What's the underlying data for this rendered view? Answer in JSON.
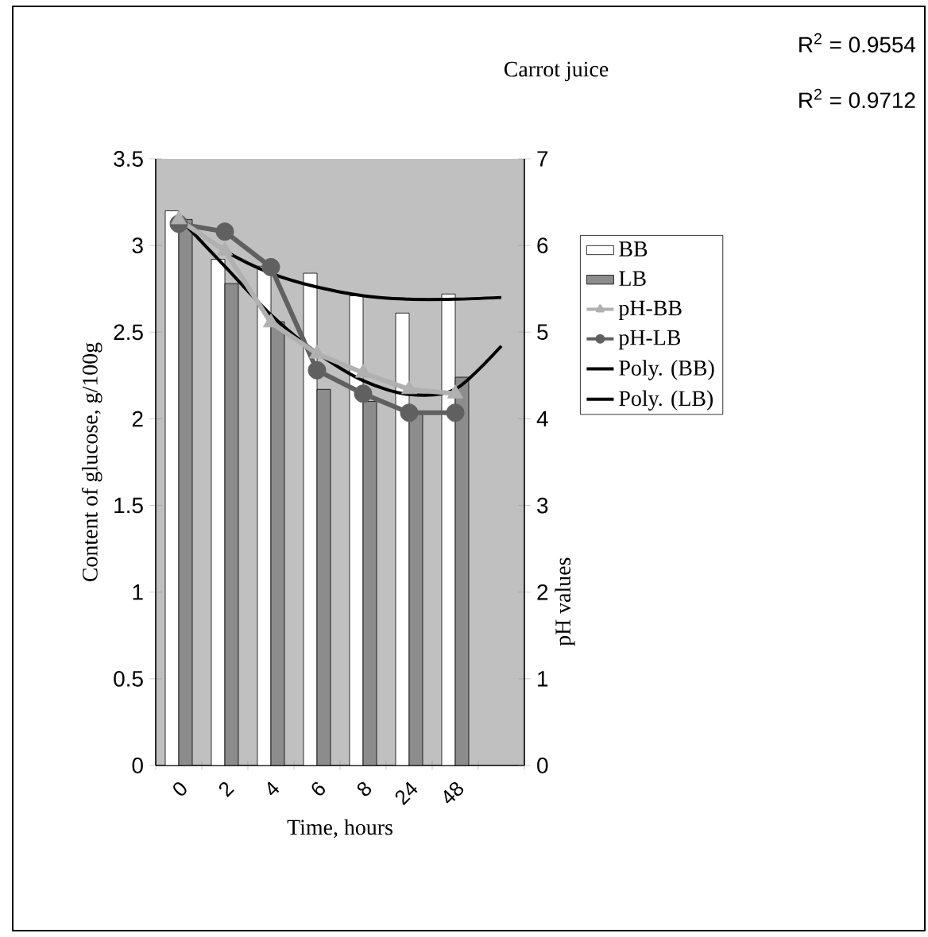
{
  "chart_data": {
    "type": "bar",
    "title": "Carrot juice",
    "xlabel": "Time, hours",
    "ylabel": "Content of glucose, g/100g",
    "y2label": "pH values",
    "annotations": [
      "R$^{2}$ = 0.9554",
      "R$^{2}$ = 0.9712"
    ],
    "categories": [
      "0",
      "2",
      "4",
      "6",
      "8",
      "24",
      "48",
      null
    ],
    "series": [
      {
        "name": "BB",
        "color": "#ffffff",
        "values": [
          3.2,
          2.92,
          2.88,
          2.84,
          2.71,
          2.61,
          2.72,
          null
        ]
      },
      {
        "name": "LB",
        "color": "#8c8c8c",
        "values": [
          3.15,
          2.78,
          2.56,
          2.17,
          2.1,
          2.03,
          2.24,
          null
        ]
      },
      {
        "name": "pH-BB",
        "type": "line",
        "axis": "y2",
        "marker": "triangle",
        "color": "#b0b0b0",
        "values": [
          6.3,
          5.94,
          5.11,
          4.75,
          4.53,
          4.34,
          4.29,
          null
        ]
      },
      {
        "name": "pH-LB",
        "type": "line",
        "axis": "y2",
        "marker": "circle",
        "color": "#606060",
        "values": [
          6.25,
          6.16,
          5.75,
          4.56,
          4.29,
          4.07,
          4.07,
          null
        ]
      },
      {
        "name": "Poly. (BB)",
        "type": "line",
        "color": "#000000",
        "values": [
          3.16,
          2.97,
          2.84,
          2.76,
          2.71,
          2.69,
          2.69,
          2.7
        ]
      },
      {
        "name": "Poly. (LB)",
        "type": "line",
        "color": "#000000",
        "values": [
          3.16,
          2.88,
          2.6,
          2.38,
          2.22,
          2.14,
          2.17,
          2.42
        ]
      }
    ],
    "ylim": [
      0,
      3.5
    ],
    "yticks": [
      0,
      0.5,
      1,
      1.5,
      2,
      2.5,
      3,
      3.5
    ],
    "y2lim": [
      0,
      7
    ],
    "y2ticks": [
      0,
      1,
      2,
      3,
      4,
      5,
      6,
      7
    ],
    "legend": "right"
  }
}
